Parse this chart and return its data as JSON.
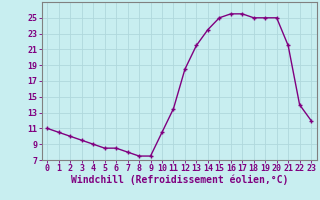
{
  "x": [
    0,
    1,
    2,
    3,
    4,
    5,
    6,
    7,
    8,
    9,
    10,
    11,
    12,
    13,
    14,
    15,
    16,
    17,
    18,
    19,
    20,
    21,
    22,
    23
  ],
  "y": [
    11,
    10.5,
    10,
    9.5,
    9,
    8.5,
    8.5,
    8,
    7.5,
    7.5,
    10.5,
    13.5,
    18.5,
    21.5,
    23.5,
    25,
    25.5,
    25.5,
    25,
    25,
    25,
    21.5,
    14,
    12
  ],
  "line_color": "#800080",
  "marker": "+",
  "marker_size": 3.5,
  "bg_color": "#c8eef0",
  "grid_color": "#b0d8dc",
  "xlabel": "Windchill (Refroidissement éolien,°C)",
  "xlabel_fontsize": 7,
  "tick_fontsize": 6,
  "ylim": [
    7,
    27
  ],
  "xlim": [
    -0.5,
    23.5
  ],
  "yticks": [
    7,
    9,
    11,
    13,
    15,
    17,
    19,
    21,
    23,
    25
  ],
  "xticks": [
    0,
    1,
    2,
    3,
    4,
    5,
    6,
    7,
    8,
    9,
    10,
    11,
    12,
    13,
    14,
    15,
    16,
    17,
    18,
    19,
    20,
    21,
    22,
    23
  ],
  "line_width": 1.0,
  "spine_color": "#808080"
}
